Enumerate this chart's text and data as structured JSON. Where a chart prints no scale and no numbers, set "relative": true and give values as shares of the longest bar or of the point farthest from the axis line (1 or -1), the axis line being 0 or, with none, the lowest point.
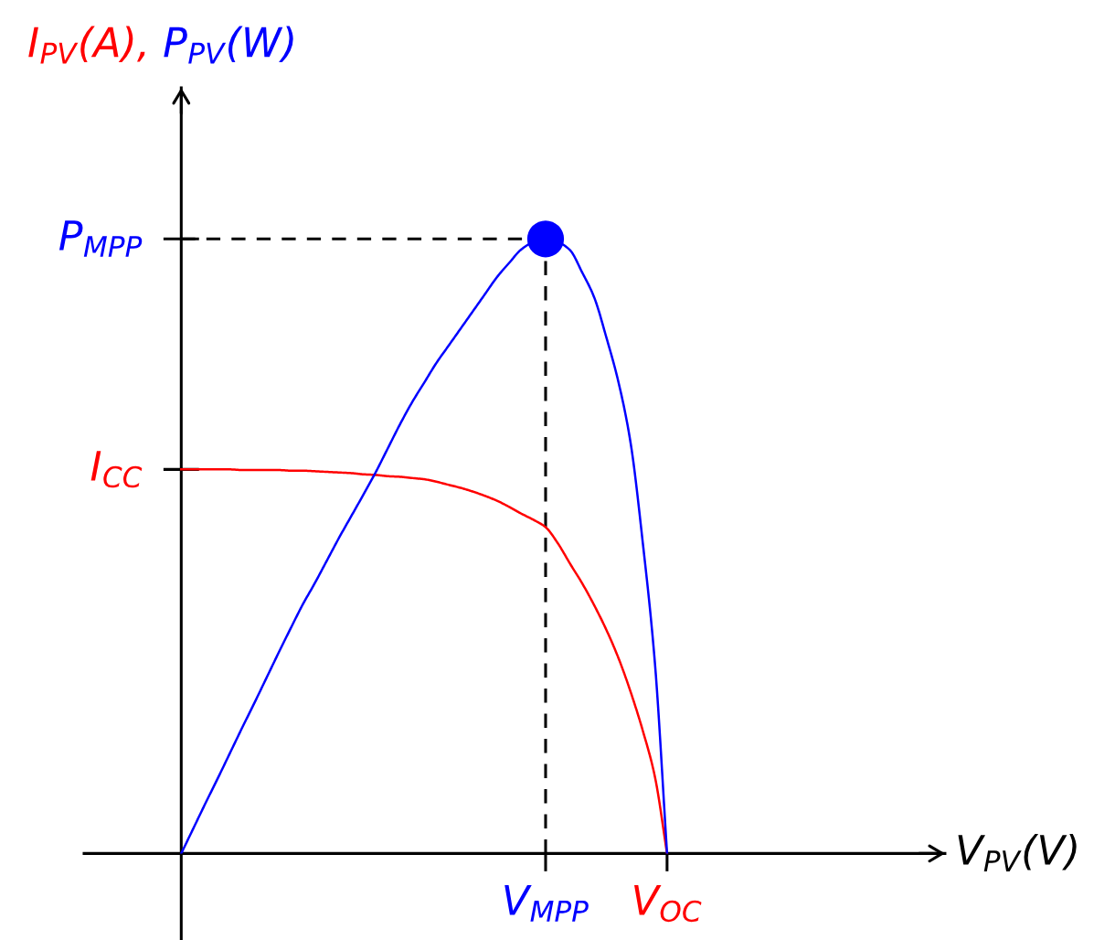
{
  "chart_data": {
    "type": "line",
    "relative": true,
    "categories": [
      null,
      null,
      null,
      null,
      null,
      null,
      null,
      null,
      null,
      null,
      null,
      null,
      null,
      null,
      null,
      null,
      null,
      null,
      null,
      null,
      null,
      null,
      null,
      null,
      null,
      null,
      null,
      null,
      null,
      null,
      "V$_{MPP}$",
      null,
      null,
      null,
      null,
      null,
      null,
      null,
      null,
      null,
      "V$_{OC}$"
    ],
    "marker": "none",
    "line_style": "solid",
    "grid": false,
    "annotations": [
      "I$_{CC}$",
      "V$_{PV}$(V)"
    ],
    "ref_lines": [
      {
        "axis": "y",
        "value": 1,
        "label": "P$_{MPP}$",
        "color": "#000000",
        "line_style": "dashed"
      }
    ],
    "series": [
      {
        "name": "I$_{PV}$(A),",
        "color": "#ff0000",
        "values": [
          0.625,
          0.625,
          0.625,
          0.625,
          0.625,
          0.624,
          0.624,
          0.624,
          0.624,
          0.623,
          0.623,
          0.622,
          0.621,
          0.62,
          0.619,
          0.617,
          0.616,
          0.614,
          0.613,
          0.611,
          0.609,
          0.605,
          0.6,
          0.595,
          0.589,
          0.582,
          0.574,
          0.564,
          0.553,
          0.543,
          0.531,
          0.505,
          0.472,
          0.44,
          0.404,
          0.364,
          0.318,
          0.263,
          0.2,
          0.125,
          0
        ]
      },
      {
        "name": "P$_{PV}$(W)",
        "color": "#0000ff",
        "values": [
          0,
          0.041,
          0.082,
          0.122,
          0.163,
          0.204,
          0.244,
          0.285,
          0.326,
          0.366,
          0.405,
          0.44,
          0.477,
          0.514,
          0.549,
          0.584,
          0.62,
          0.659,
          0.698,
          0.734,
          0.766,
          0.798,
          0.826,
          0.854,
          0.882,
          0.91,
          0.938,
          0.961,
          0.983,
          0.995,
          1.0,
          0.995,
          0.982,
          0.946,
          0.905,
          0.84,
          0.767,
          0.668,
          0.506,
          0.31,
          0
        ]
      },
      {
        "type": "lollipop",
        "color": "#0000ff",
        "marker": "circle",
        "line_style": "dashed",
        "values": [
          null,
          null,
          null,
          null,
          null,
          null,
          null,
          null,
          null,
          null,
          null,
          null,
          null,
          null,
          null,
          null,
          null,
          null,
          null,
          null,
          null,
          null,
          null,
          null,
          null,
          null,
          null,
          null,
          null,
          null,
          1,
          null,
          null,
          null,
          null,
          null,
          null,
          null,
          null,
          null,
          null
        ]
      }
    ]
  }
}
